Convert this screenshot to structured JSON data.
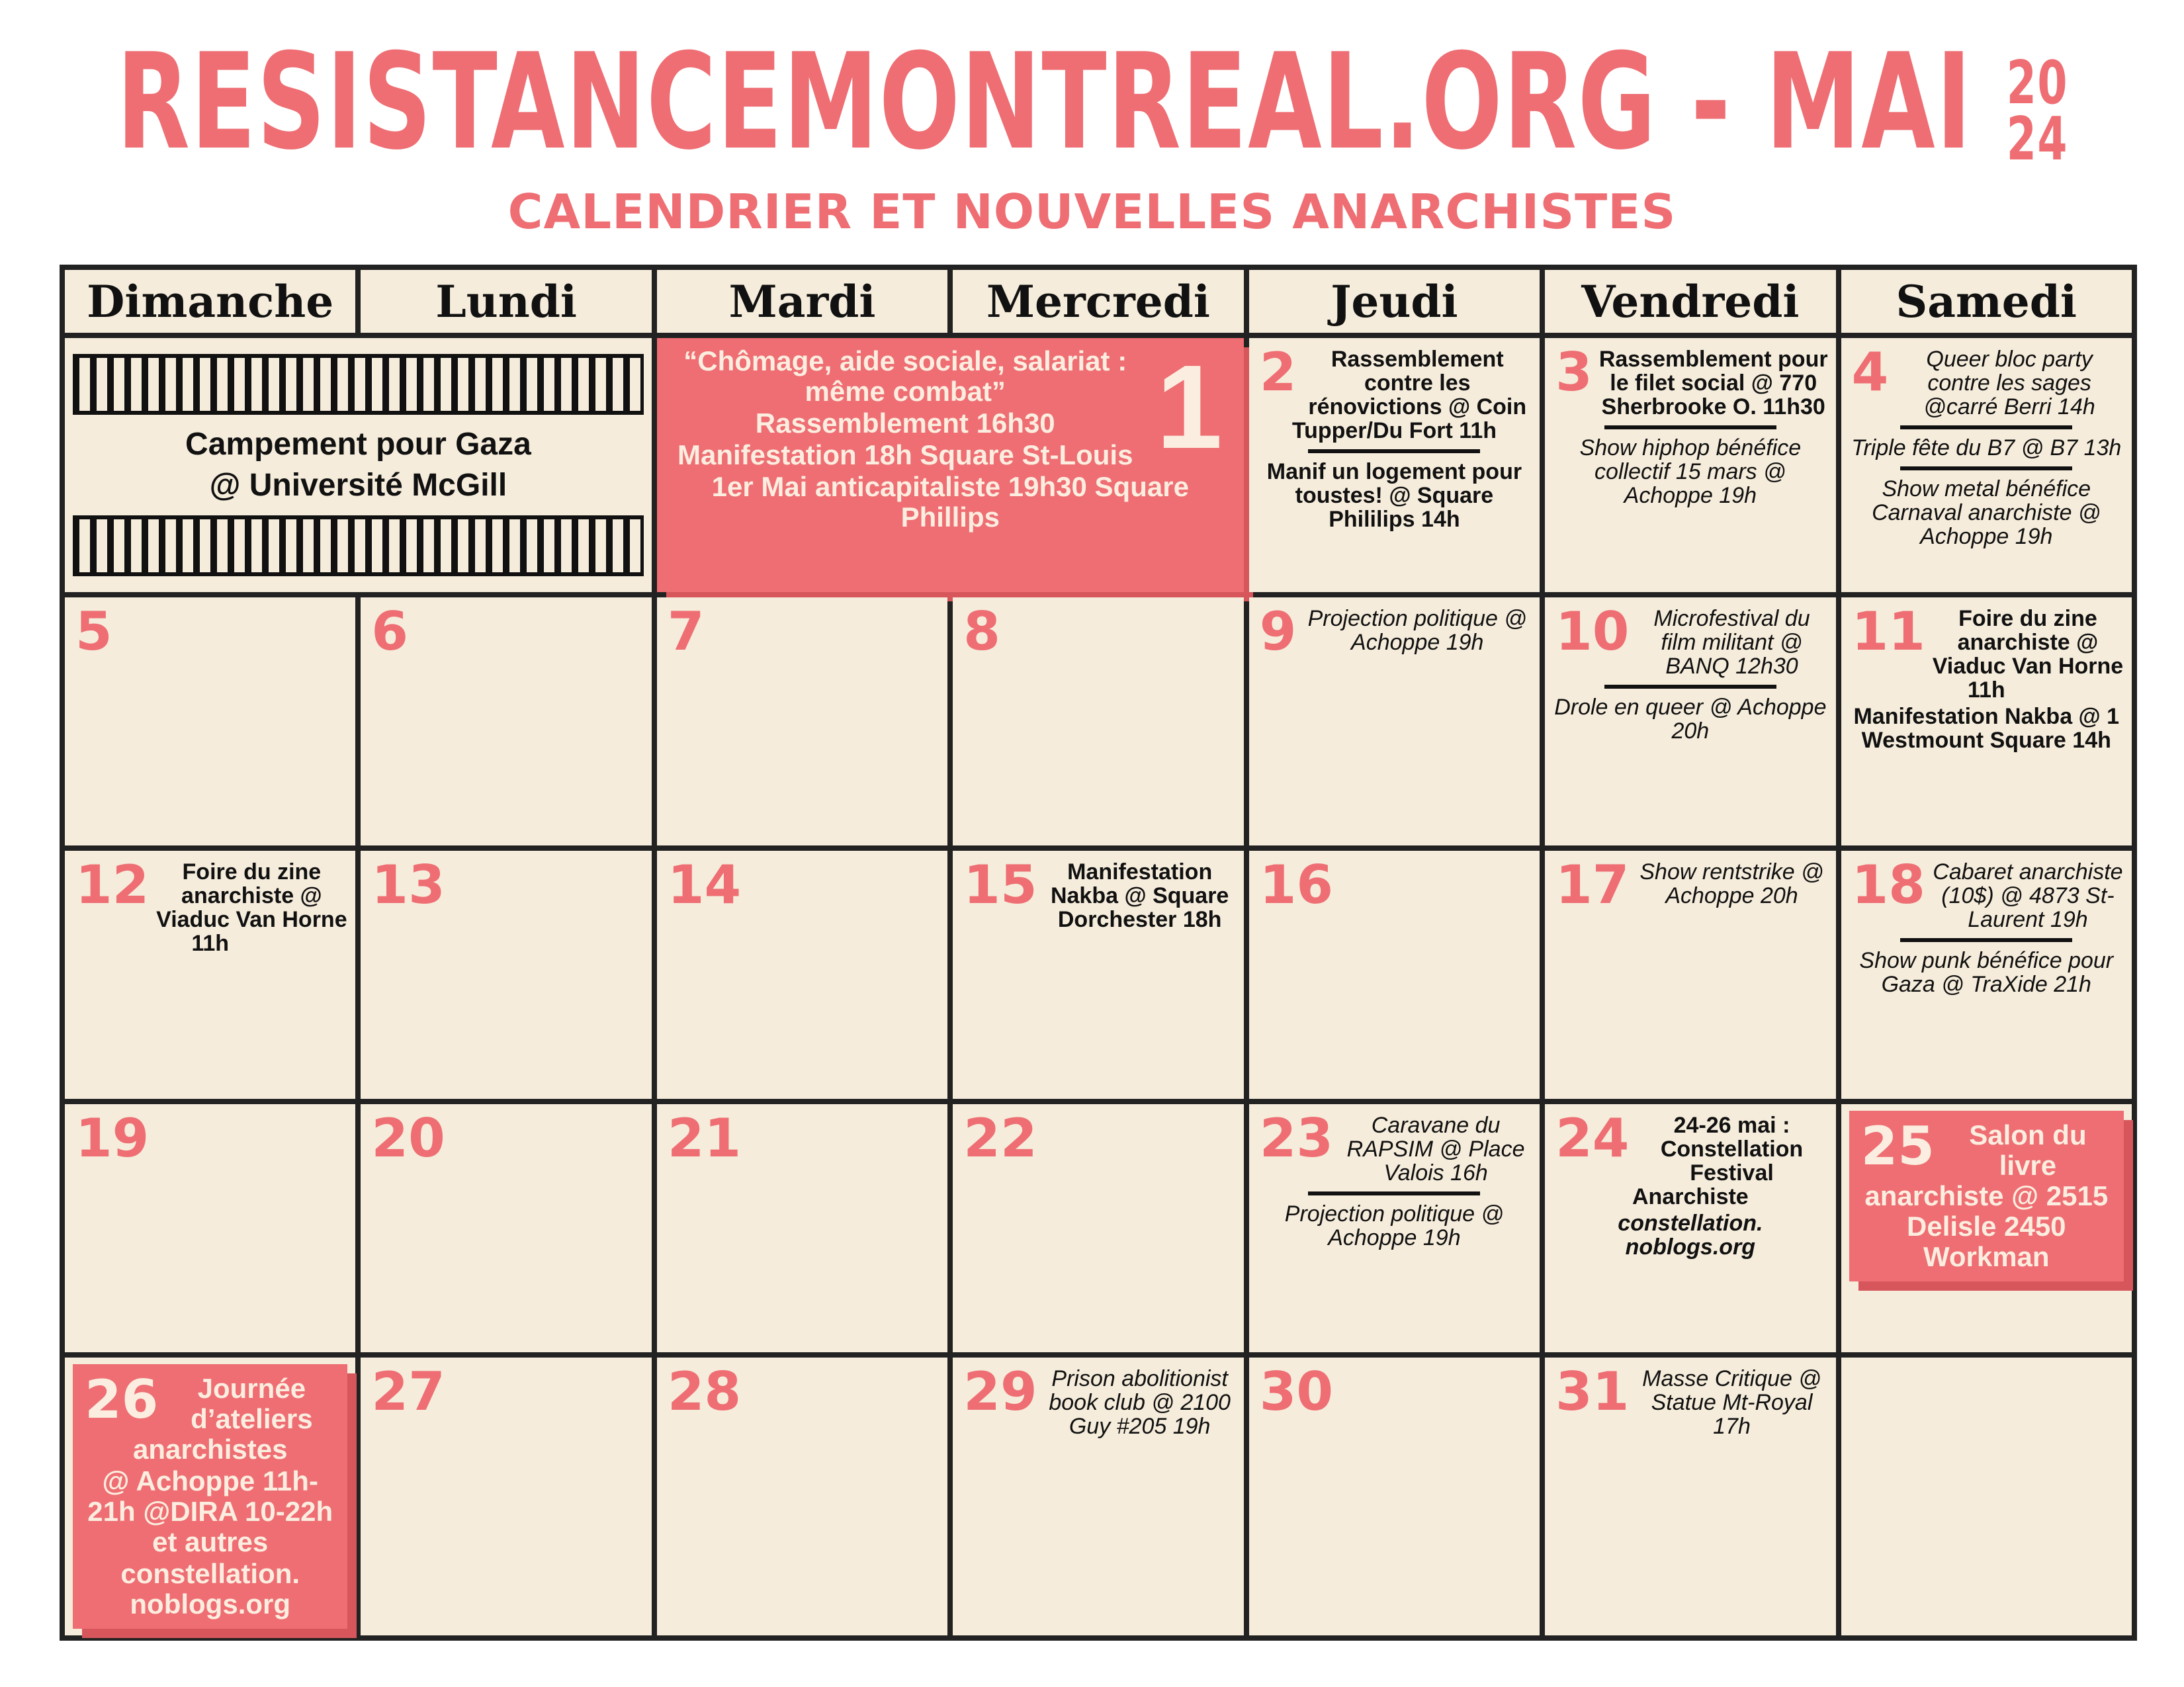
{
  "header": {
    "title": "RESISTANCEMONTREAL.ORG - MAI",
    "year_top": "20",
    "year_bottom": "24",
    "subtitle": "CALENDRIER ET NOUVELLES ANARCHISTES"
  },
  "colors": {
    "accent": "#ee6e73",
    "cell": "#f5ecdb",
    "border": "#222222"
  },
  "days": [
    "Dimanche",
    "Lundi",
    "Mardi",
    "Mercredi",
    "Jeudi",
    "Vendredi",
    "Samedi"
  ],
  "cells": [
    {
      "span": 2,
      "pattern": true,
      "events": [
        {
          "t": "Campement pour Gaza",
          "s": "b"
        },
        {
          "t": "@ Université McGill",
          "s": "b"
        }
      ]
    },
    {
      "day": "1",
      "span": 2,
      "pink": true,
      "events": [
        {
          "t": "“Chômage, aide sociale, salariat : même combat”",
          "s": "b"
        },
        {
          "t": "Rassemblement 16h30",
          "s": "b"
        },
        {
          "t": "Manifestation 18h Square St-Louis",
          "s": "b"
        },
        {
          "t": "1er Mai anticapitaliste 19h30 Square Phillips",
          "s": "b"
        }
      ]
    },
    {
      "day": "2",
      "events": [
        {
          "t": "Rassemblement contre les rénovictions @ Coin Tupper/Du Fort 11h",
          "s": "b"
        },
        {
          "sep": true
        },
        {
          "t": "Manif un logement pour toustes! @ Square Phililips 14h",
          "s": "b"
        }
      ]
    },
    {
      "day": "3",
      "events": [
        {
          "t": "Rassemblement pour le filet social @ 770 Sherbrooke O. 11h30",
          "s": "b"
        },
        {
          "sep": true
        },
        {
          "t": "Show hiphop bénéfice collectif 15 mars @ Achoppe 19h",
          "s": "i"
        }
      ]
    },
    {
      "day": "4",
      "events": [
        {
          "t": "Queer bloc party contre les sages @carré Berri 14h",
          "s": "i"
        },
        {
          "sep": true
        },
        {
          "t": "Triple fête du B7 @ B7 13h",
          "s": "i"
        },
        {
          "sep": true
        },
        {
          "t": "Show metal bénéfice Carnaval anarchiste @ Achoppe 19h",
          "s": "i"
        }
      ]
    },
    {
      "day": "5",
      "events": []
    },
    {
      "day": "6",
      "events": []
    },
    {
      "day": "7",
      "events": []
    },
    {
      "day": "8",
      "events": []
    },
    {
      "day": "9",
      "events": [
        {
          "t": "Projection politique @ Achoppe 19h",
          "s": "i"
        }
      ]
    },
    {
      "day": "10",
      "events": [
        {
          "t": "Microfestival du film militant @ BANQ 12h30",
          "s": "i"
        },
        {
          "sep": true
        },
        {
          "t": "Drole en queer @ Achoppe 20h",
          "s": "i"
        }
      ]
    },
    {
      "day": "11",
      "events": [
        {
          "t": "Foire du zine anarchiste @ Viaduc Van Horne 11h",
          "s": "b"
        },
        {
          "t": "Manifestation Nakba @ 1 Westmount Square 14h",
          "s": "b"
        }
      ]
    },
    {
      "day": "12",
      "events": [
        {
          "t": "Foire du zine anarchiste @ Viaduc Van Horne 11h",
          "s": "b"
        }
      ]
    },
    {
      "day": "13",
      "events": []
    },
    {
      "day": "14",
      "events": []
    },
    {
      "day": "15",
      "events": [
        {
          "t": "Manifestation Nakba @ Square Dorchester 18h",
          "s": "b"
        }
      ]
    },
    {
      "day": "16",
      "events": []
    },
    {
      "day": "17",
      "events": [
        {
          "t": "Show rentstrike @ Achoppe 20h",
          "s": "i"
        }
      ]
    },
    {
      "day": "18",
      "events": [
        {
          "t": "Cabaret anarchiste (10$) @ 4873 St-Laurent 19h",
          "s": "i"
        },
        {
          "sep": true
        },
        {
          "t": "Show punk bénéfice pour Gaza @ TraXide 21h",
          "s": "i"
        }
      ]
    },
    {
      "day": "19",
      "events": []
    },
    {
      "day": "20",
      "events": []
    },
    {
      "day": "21",
      "events": []
    },
    {
      "day": "22",
      "events": []
    },
    {
      "day": "23",
      "events": [
        {
          "t": "Caravane du RAPSIM @ Place Valois 16h",
          "s": "i"
        },
        {
          "sep": true
        },
        {
          "t": "Projection politique @ Achoppe 19h",
          "s": "i"
        }
      ]
    },
    {
      "day": "24",
      "events": [
        {
          "t": "24-26 mai : Constellation Festival Anarchiste",
          "s": "b"
        },
        {
          "t": "constellation. noblogs.org",
          "s": "b i"
        }
      ]
    },
    {
      "day": "25",
      "pinkbox": true,
      "events": [
        {
          "t": "Salon du livre anarchiste @ 2515 Delisle 2450 Workman",
          "s": "b"
        }
      ]
    },
    {
      "day": "26",
      "pinkbox": true,
      "events": [
        {
          "t": "Journée d’ateliers anarchistes",
          "s": "b"
        },
        {
          "t": "@ Achoppe 11h-21h @DIRA 10-22h et autres",
          "s": "b"
        },
        {
          "t": "constellation. noblogs.org",
          "s": "b"
        }
      ]
    },
    {
      "day": "27",
      "events": []
    },
    {
      "day": "28",
      "events": []
    },
    {
      "day": "29",
      "events": [
        {
          "t": "Prison abolitionist book club @ 2100 Guy #205 19h",
          "s": "i"
        }
      ]
    },
    {
      "day": "30",
      "events": []
    },
    {
      "day": "31",
      "events": [
        {
          "t": "Masse Critique @ Statue Mt-Royal 17h",
          "s": "i"
        }
      ]
    },
    {
      "events": []
    }
  ]
}
